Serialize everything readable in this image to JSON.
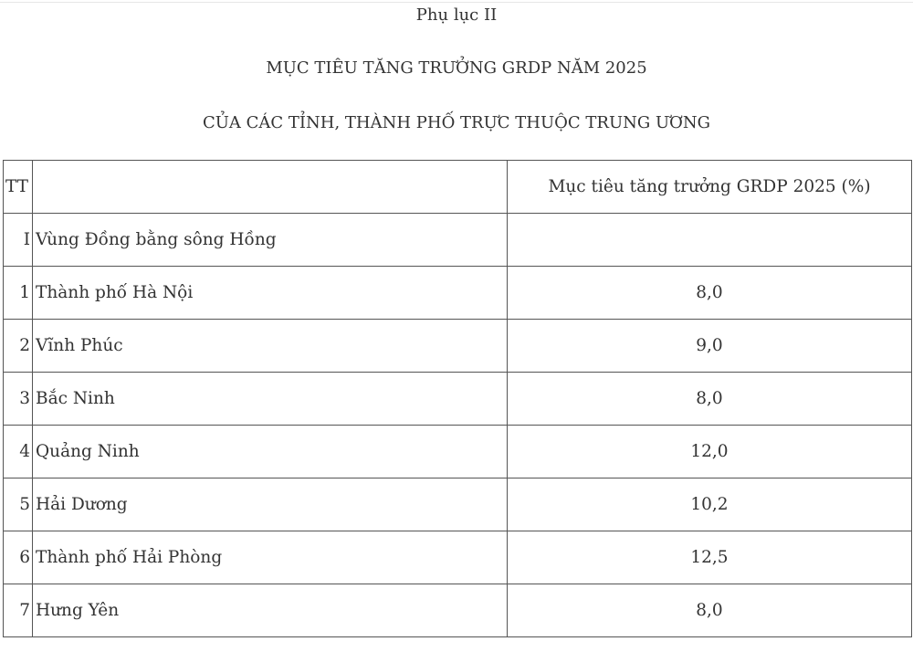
{
  "heading": {
    "appendix": "Phụ lục II",
    "title_line1": "MỤC TIÊU TĂNG TRƯỞNG GRDP NĂM 2025",
    "title_line2": "CỦA CÁC TỈNH, THÀNH PHỐ TRỰC THUỘC TRUNG ƯƠNG"
  },
  "table": {
    "headers": [
      "TT",
      "",
      "Mục tiêu tăng trưởng GRDP 2025 (%)"
    ],
    "rows": [
      {
        "tt": "I",
        "name": "Vùng Đồng bằng sông Hồng",
        "value": ""
      },
      {
        "tt": "1",
        "name": "Thành phố Hà Nội",
        "value": "8,0"
      },
      {
        "tt": "2",
        "name": "Vĩnh Phúc",
        "value": "9,0"
      },
      {
        "tt": "3",
        "name": "Bắc Ninh",
        "value": "8,0"
      },
      {
        "tt": "4",
        "name": "Quảng Ninh",
        "value": "12,0"
      },
      {
        "tt": "5",
        "name": "Hải Dương",
        "value": "10,2"
      },
      {
        "tt": "6",
        "name": "Thành phố Hải Phòng",
        "value": "12,5"
      },
      {
        "tt": "7",
        "name": "Hưng Yên",
        "value": "8,0"
      }
    ]
  }
}
